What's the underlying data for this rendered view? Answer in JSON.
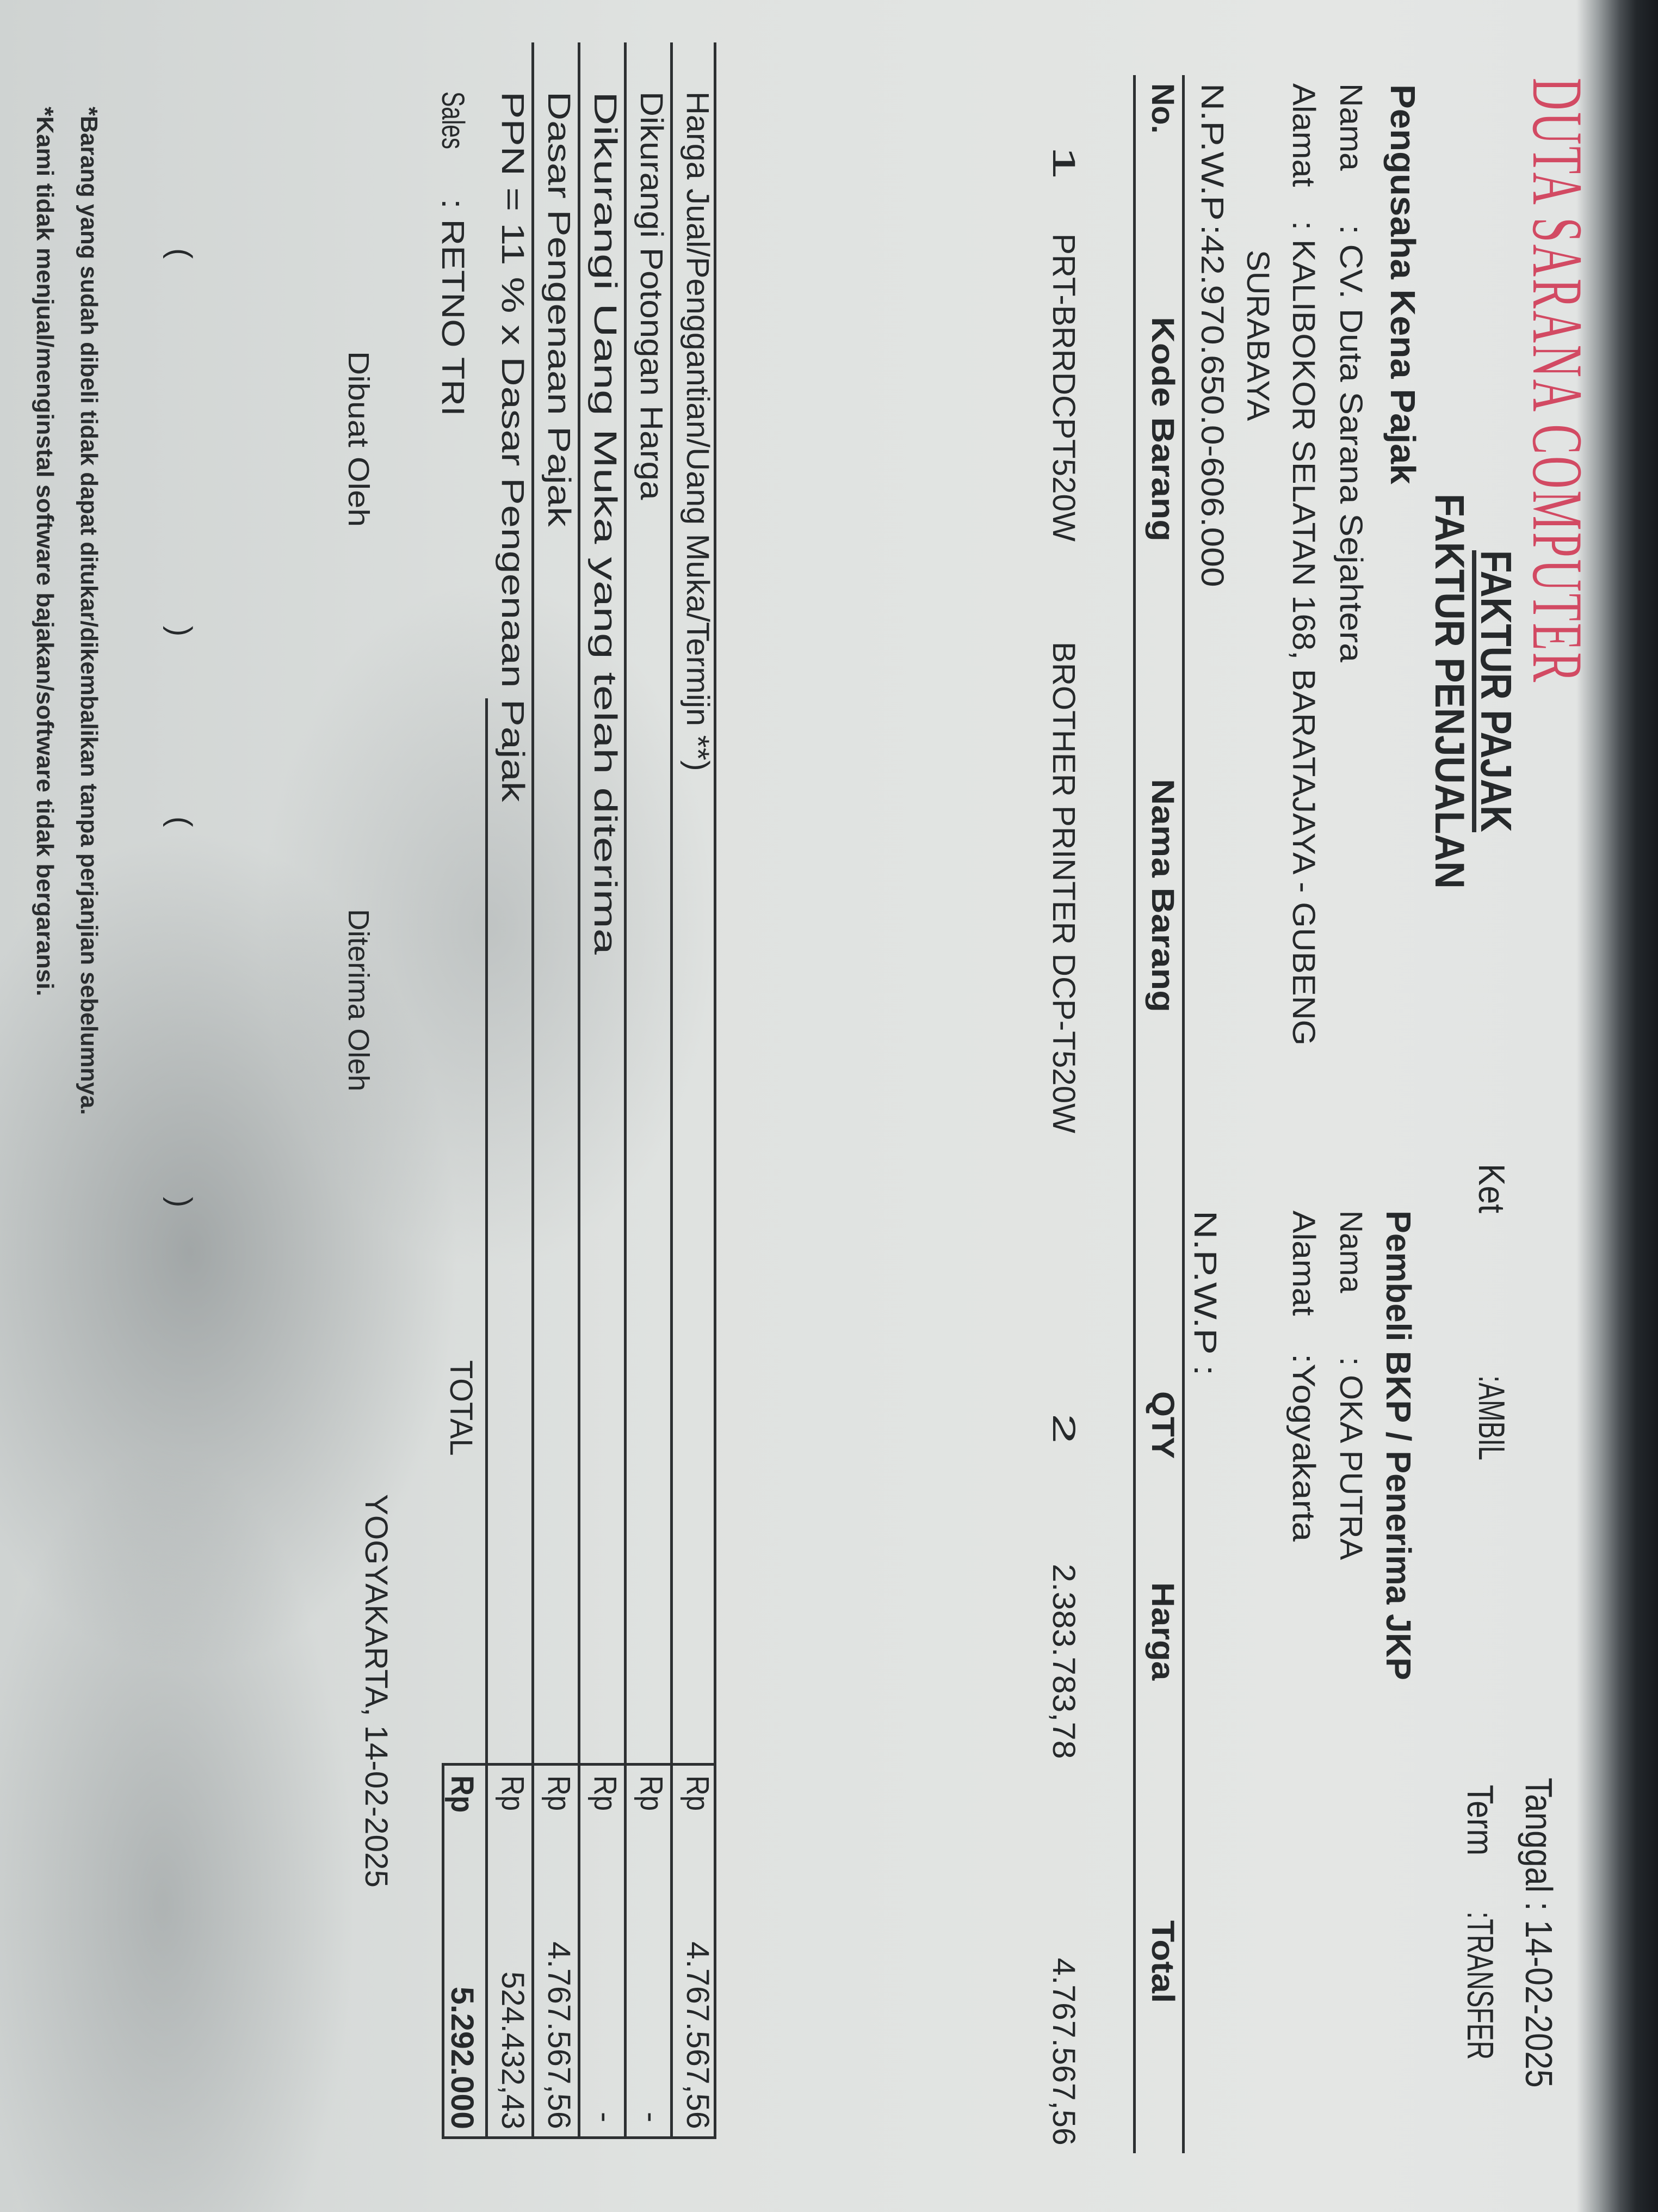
{
  "header": {
    "company": "DUTA SARANA COMPUTER",
    "faktur_pajak": "FAKTUR PAJAK",
    "faktur_penjualan": "FAKTUR PENJUALAN",
    "ket_label": "Ket",
    "ket_value": ":AMBIL",
    "tanggal": "Tanggal : 14-02-2025",
    "term_label": "Term",
    "term_value": ":TRANSFER"
  },
  "seller": {
    "heading": "Pengusaha Kena Pajak",
    "nama_label": "Nama",
    "nama_value": ": CV. Duta Sarana Sejahtera",
    "alamat_label": "Alamat",
    "alamat_value": ": KALIBOKOR SELATAN 168, BARATAJAYA - GUBENG",
    "alamat_city": "SURABAYA",
    "npwp_label": "N.P.W.P",
    "npwp_value": ":42.970.650.0-606.000"
  },
  "buyer": {
    "heading": "Pembeli BKP / Penerima JKP",
    "nama_label": "Nama",
    "nama_value": ": OKA PUTRA",
    "alamat_label": "Alamat",
    "alamat_value": ":Yogyakarta",
    "npwp": "N.P.W.P :"
  },
  "table": {
    "headers": [
      "No.",
      "Kode Barang",
      "Nama Barang",
      "QTY",
      "Harga",
      "Total"
    ],
    "rows": [
      [
        "1",
        "PRT-BRRDCPT520W",
        "BROTHER PRINTER DCP-T520W",
        "2",
        "2.383.783,78",
        "4.767.567,56"
      ]
    ]
  },
  "summary": {
    "rows": [
      {
        "label": "Harga Jual/Penggantian/Uang Muka/Termijn **)",
        "currency": "Rp",
        "value": "4.767.567,56"
      },
      {
        "label": "Dikurangi Potongan Harga",
        "currency": "Rp",
        "value": "-"
      },
      {
        "label": "Dikurangi Uang Muka yang telah diterima",
        "currency": "Rp",
        "value": "-"
      },
      {
        "label": "Dasar Pengenaan Pajak",
        "currency": "Rp",
        "value": "4.767.567,56"
      },
      {
        "label": "PPN = 11 % x Dasar Pengenaan Pajak",
        "currency": "Rp",
        "value": "524.432,43"
      }
    ],
    "sales_label": "Sales",
    "sales_value": ": RETNO TRI",
    "total_label": "TOTAL",
    "total_currency": "Rp",
    "total_value": "5.292.000"
  },
  "signatures": {
    "made_by": "Dibuat Oleh",
    "received_by": "Diterima Oleh",
    "place_date": "YOGYAKARTA, 14-02-2025",
    "brackets": [
      "(",
      ")",
      "(",
      ")"
    ]
  },
  "footnotes": [
    "*Barang yang sudah dibeli tidak dapat ditukar/dikembalikan tanpa perjanjian sebelumnya.",
    "*Kami tidak menjual/menginstal software bajakan/software tidak bergaransi."
  ],
  "colors": {
    "brand_red": "#d24a63",
    "ink": "#26292b",
    "paper": "#e2e4e3"
  }
}
